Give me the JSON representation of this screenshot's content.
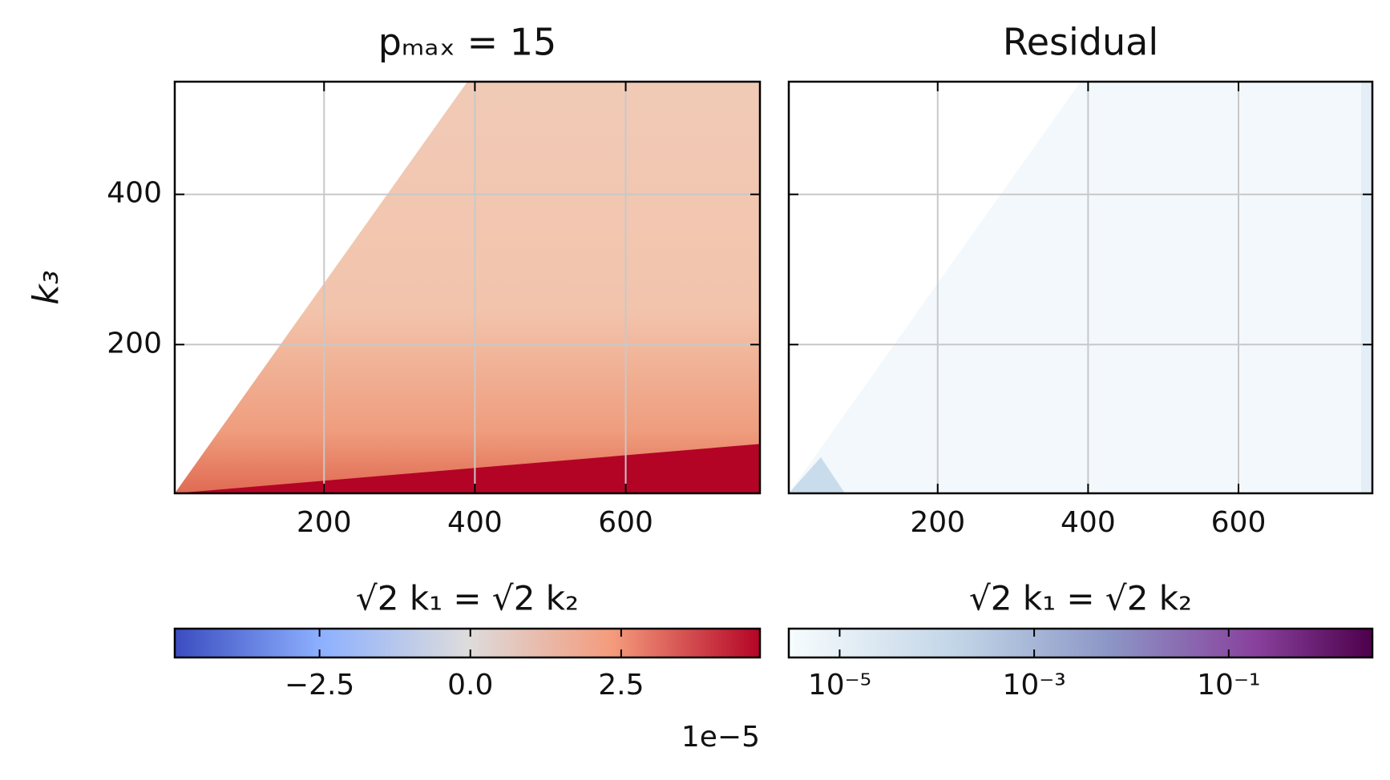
{
  "chart_data": [
    {
      "type": "heatmap",
      "title": "pₘₐₓ = 15",
      "xlabel": "√2 k₁ = √2 k₂",
      "ylabel": "k₃",
      "xlim": [
        2,
        778
      ],
      "xticks": [
        200,
        400,
        600
      ],
      "ylim": [
        2,
        550
      ],
      "yticks": [
        200,
        400
      ],
      "grid": true,
      "colorbar": {
        "scale": "linear",
        "clim": [
          -4.9,
          4.8
        ],
        "ticks": [
          {
            "value": -2.5,
            "label": "−2.5"
          },
          {
            "value": 0,
            "label": "0.0"
          },
          {
            "value": 2.5,
            "label": "2.5"
          }
        ],
        "offset_label": "1e−5"
      }
    },
    {
      "type": "heatmap",
      "title": "Residual",
      "xlabel": "√2 k₁ = √2 k₂",
      "xlim": [
        2,
        778
      ],
      "xticks": [
        200,
        400,
        600
      ],
      "ylim": [
        2,
        550
      ],
      "yticks": [
        200,
        400
      ],
      "grid": true,
      "colorbar": {
        "scale": "log",
        "clim": [
          3e-06,
          3
        ],
        "ticks": [
          {
            "value": 1e-05,
            "label": "10⁻⁵"
          },
          {
            "value": 0.001,
            "label": "10⁻³"
          },
          {
            "value": 0.1,
            "label": "10⁻¹"
          }
        ]
      }
    }
  ]
}
